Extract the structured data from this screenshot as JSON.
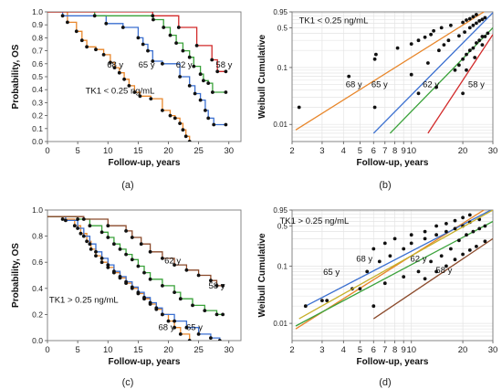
{
  "figure": {
    "panel_labels": [
      "(a)",
      "(b)",
      "(c)",
      "(d)"
    ]
  },
  "chart_data": [
    {
      "panel": "(a)",
      "type": "line",
      "step": true,
      "xlabel": "Follow-up, years",
      "ylabel": "Probability, OS",
      "xlim": [
        0,
        32
      ],
      "ylim": [
        0,
        1.0
      ],
      "xticks": [
        0,
        5,
        10,
        15,
        20,
        25,
        30
      ],
      "yticks": [
        0,
        0.1,
        0.2,
        0.3,
        0.4,
        0.5,
        0.6,
        0.7,
        0.8,
        0.9,
        1.0
      ],
      "annotations": [
        {
          "text": "TK1 < 0.25 ng/mL",
          "x": 12,
          "y": 0.37
        },
        {
          "text": "68 y",
          "x": 11.2,
          "y": 0.57
        },
        {
          "text": "65 y",
          "x": 16.4,
          "y": 0.57
        },
        {
          "text": "62 y",
          "x": 22.6,
          "y": 0.57
        },
        {
          "text": "58 y",
          "x": 29.2,
          "y": 0.57
        }
      ],
      "series": [
        {
          "color": "#e8862a",
          "x": [
            0,
            3.3,
            4.8,
            5.7,
            6.5,
            8,
            9.3,
            10.4,
            11.1,
            11.9,
            12.7,
            13.5,
            14.4,
            15.3,
            17.1,
            19,
            20.3,
            21.1,
            21.9,
            22.4,
            22.9,
            23.5
          ],
          "y": [
            1.0,
            0.92,
            0.85,
            0.78,
            0.73,
            0.71,
            0.67,
            0.61,
            0.57,
            0.53,
            0.48,
            0.43,
            0.38,
            0.35,
            0.33,
            0.24,
            0.2,
            0.18,
            0.14,
            0.09,
            0.04,
            0.0
          ]
        },
        {
          "color": "#3a6fd0",
          "x": [
            0,
            2.5,
            9.7,
            12.5,
            15,
            15.8,
            16.6,
            17.4,
            19,
            21.9,
            23.5,
            24.4,
            25.3,
            26.1,
            26.6,
            27.5,
            29.5
          ],
          "y": [
            1.0,
            0.97,
            0.91,
            0.88,
            0.8,
            0.75,
            0.7,
            0.62,
            0.6,
            0.5,
            0.43,
            0.37,
            0.32,
            0.24,
            0.18,
            0.13,
            0.13
          ]
        },
        {
          "color": "#3aa23a",
          "x": [
            0,
            7.8,
            17.5,
            19.2,
            20.3,
            21.3,
            22.4,
            23.5,
            24.2,
            25.3,
            25.8,
            26.6,
            27.3,
            29.5
          ],
          "y": [
            1.0,
            0.97,
            0.94,
            0.88,
            0.82,
            0.76,
            0.7,
            0.65,
            0.58,
            0.52,
            0.47,
            0.45,
            0.38,
            0.38
          ]
        },
        {
          "color": "#d22a2a",
          "x": [
            0,
            17.4,
            21.7,
            24.7,
            27.2,
            28.1,
            29.5
          ],
          "y": [
            1.0,
            0.97,
            0.88,
            0.74,
            0.63,
            0.54,
            0.54
          ]
        }
      ]
    },
    {
      "panel": "(b)",
      "type": "scatter",
      "xscale": "log",
      "yscale": "log",
      "xlabel": "Follow-up, years",
      "ylabel": "Weibull Cumulative",
      "xlim": [
        2,
        30
      ],
      "ylim": [
        0.005,
        0.95
      ],
      "xticks": [
        2,
        3,
        4,
        5,
        6,
        7,
        8,
        9,
        10,
        20,
        30
      ],
      "yticks": [
        0.01,
        0.1,
        0.5,
        0.95
      ],
      "annotations": [
        {
          "text": "TK1 < 0.25 ng/mL",
          "x": 3.5,
          "y": 0.6
        },
        {
          "text": "68 y",
          "x": 4.6,
          "y": 0.045
        },
        {
          "text": "65 y",
          "x": 6.5,
          "y": 0.045
        },
        {
          "text": "62 y",
          "x": 13,
          "y": 0.045
        },
        {
          "text": "58 y",
          "x": 24,
          "y": 0.045
        }
      ],
      "series": [
        {
          "color": "#e8862a",
          "fit": [
            [
              2.1,
              0.008
            ],
            [
              27,
              0.98
            ]
          ],
          "points": [
            [
              2.2,
              0.02
            ],
            [
              4.3,
              0.07
            ],
            [
              6.1,
              0.14
            ],
            [
              6.2,
              0.17
            ],
            [
              8.3,
              0.22
            ],
            [
              10,
              0.26
            ],
            [
              11,
              0.3
            ],
            [
              12,
              0.34
            ],
            [
              13,
              0.38
            ],
            [
              13.5,
              0.44
            ],
            [
              15,
              0.5
            ],
            [
              17,
              0.55
            ],
            [
              20,
              0.62
            ],
            [
              21,
              0.68
            ],
            [
              22,
              0.72
            ],
            [
              23,
              0.78
            ],
            [
              24,
              0.85
            ]
          ]
        },
        {
          "color": "#3a6fd0",
          "fit": [
            [
              6,
              0.007
            ],
            [
              30,
              0.92
            ]
          ],
          "points": [
            [
              10,
              0.075
            ],
            [
              12.5,
              0.12
            ],
            [
              14.5,
              0.2
            ],
            [
              15.5,
              0.25
            ],
            [
              16.5,
              0.3
            ],
            [
              19,
              0.36
            ],
            [
              20.5,
              0.42
            ],
            [
              22,
              0.5
            ],
            [
              23,
              0.55
            ],
            [
              24,
              0.6
            ],
            [
              25,
              0.66
            ],
            [
              26,
              0.7
            ],
            [
              27,
              0.75
            ]
          ]
        },
        {
          "color": "#3aa23a",
          "fit": [
            [
              7.5,
              0.007
            ],
            [
              30,
              0.5
            ]
          ],
          "points": [
            [
              6.1,
              0.02
            ],
            [
              11,
              0.035
            ],
            [
              14,
              0.045
            ],
            [
              18,
              0.09
            ],
            [
              19,
              0.11
            ],
            [
              20,
              0.14
            ],
            [
              21,
              0.17
            ],
            [
              22,
              0.2
            ],
            [
              23,
              0.22
            ],
            [
              24,
              0.27
            ],
            [
              25,
              0.3
            ],
            [
              26,
              0.35
            ]
          ]
        },
        {
          "color": "#d22a2a",
          "fit": [
            [
              12.5,
              0.007
            ],
            [
              30,
              0.38
            ]
          ],
          "points": [
            [
              20,
              0.035
            ],
            [
              21,
              0.09
            ],
            [
              23.5,
              0.15
            ],
            [
              26,
              0.25
            ],
            [
              27,
              0.35
            ],
            [
              28,
              0.4
            ]
          ]
        }
      ]
    },
    {
      "panel": "(c)",
      "type": "line",
      "step": true,
      "xlabel": "Follow-up, years",
      "ylabel": "Probability, OS",
      "xlim": [
        0,
        32
      ],
      "ylim": [
        0,
        1.0
      ],
      "xticks": [
        0,
        5,
        10,
        15,
        20,
        25,
        30
      ],
      "yticks": [
        0,
        0.2,
        0.4,
        0.6,
        0.8,
        1.0
      ],
      "annotations": [
        {
          "text": "TK1 > 0.25 ng/mL",
          "x": 6,
          "y": 0.29
        },
        {
          "text": "62 y",
          "x": 20.7,
          "y": 0.59
        },
        {
          "text": "58 y",
          "x": 28,
          "y": 0.4
        },
        {
          "text": "68 y",
          "x": 19.7,
          "y": 0.08
        },
        {
          "text": "65 y",
          "x": 24.3,
          "y": 0.08
        }
      ],
      "series": [
        {
          "color": "#e8862a",
          "x": [
            0,
            2.5,
            4.5,
            5.5,
            6.5,
            7.2,
            8,
            9,
            10,
            11,
            12,
            13,
            14,
            15,
            16,
            17,
            18,
            19,
            20,
            21,
            22,
            23.5
          ],
          "y": [
            0.95,
            0.93,
            0.88,
            0.82,
            0.76,
            0.7,
            0.65,
            0.6,
            0.56,
            0.52,
            0.48,
            0.44,
            0.4,
            0.36,
            0.32,
            0.28,
            0.24,
            0.2,
            0.15,
            0.1,
            0.05,
            0.0
          ]
        },
        {
          "color": "#3a6fd0",
          "x": [
            0,
            3,
            5,
            6,
            7,
            8,
            9,
            10,
            11,
            12,
            13,
            14,
            15,
            16,
            17,
            18,
            19,
            21,
            23,
            25,
            27,
            28.5
          ],
          "y": [
            0.95,
            0.92,
            0.86,
            0.8,
            0.74,
            0.68,
            0.63,
            0.58,
            0.53,
            0.49,
            0.45,
            0.41,
            0.37,
            0.33,
            0.29,
            0.25,
            0.2,
            0.15,
            0.1,
            0.05,
            0.02,
            0.0
          ]
        },
        {
          "color": "#3aa23a",
          "x": [
            0,
            5,
            7,
            9,
            10,
            11,
            12,
            13,
            14,
            15,
            16,
            17,
            19,
            21,
            22,
            24,
            26,
            28,
            29
          ],
          "y": [
            0.95,
            0.93,
            0.88,
            0.83,
            0.79,
            0.74,
            0.7,
            0.66,
            0.62,
            0.57,
            0.52,
            0.47,
            0.42,
            0.37,
            0.32,
            0.27,
            0.23,
            0.2,
            0.2
          ]
        },
        {
          "color": "#8b4a2b",
          "x": [
            0,
            6,
            10,
            13,
            14,
            15.5,
            17,
            19,
            21,
            23,
            25,
            27,
            28,
            29
          ],
          "y": [
            0.95,
            0.93,
            0.88,
            0.84,
            0.79,
            0.74,
            0.68,
            0.63,
            0.58,
            0.54,
            0.5,
            0.46,
            0.42,
            0.42
          ]
        }
      ]
    },
    {
      "panel": "(d)",
      "type": "scatter",
      "xscale": "log",
      "yscale": "log",
      "xlabel": "Follow-up, years",
      "ylabel": "Weibull Cumulative",
      "xlim": [
        2,
        30
      ],
      "ylim": [
        0.005,
        0.95
      ],
      "xticks": [
        2,
        3,
        4,
        5,
        6,
        7,
        8,
        9,
        10,
        20,
        30
      ],
      "yticks": [
        0.01,
        0.1,
        0.5,
        0.95
      ],
      "annotations": [
        {
          "text": "TK1 > 0.25 ng/mL",
          "x": 2.7,
          "y": 0.55
        },
        {
          "text": "68 y",
          "x": 5.3,
          "y": 0.12
        },
        {
          "text": "65 y",
          "x": 3.4,
          "y": 0.07
        },
        {
          "text": "62 y",
          "x": 11,
          "y": 0.12
        },
        {
          "text": "58 y",
          "x": 15.5,
          "y": 0.075
        }
      ],
      "series": [
        {
          "color": "#e8862a",
          "fit": [
            [
              2.1,
              0.008
            ],
            [
              27,
              0.98
            ]
          ],
          "points": [
            [
              6,
              0.2
            ],
            [
              7,
              0.25
            ],
            [
              8,
              0.3
            ],
            [
              10,
              0.35
            ],
            [
              12,
              0.4
            ],
            [
              14,
              0.5
            ],
            [
              16,
              0.55
            ],
            [
              18,
              0.62
            ],
            [
              20,
              0.7
            ],
            [
              22,
              0.78
            ]
          ]
        },
        {
          "color": "#3a6fd0",
          "fit": [
            [
              2.4,
              0.02
            ],
            [
              30,
              0.99
            ]
          ],
          "points": [
            [
              2.4,
              0.02
            ],
            [
              3.2,
              0.025
            ],
            [
              4.5,
              0.04
            ],
            [
              5.5,
              0.08
            ],
            [
              6.5,
              0.12
            ],
            [
              7.5,
              0.15
            ],
            [
              9,
              0.2
            ],
            [
              10,
              0.25
            ],
            [
              12,
              0.3
            ],
            [
              14,
              0.35
            ],
            [
              16,
              0.4
            ],
            [
              18,
              0.45
            ],
            [
              20,
              0.5
            ],
            [
              22,
              0.58
            ],
            [
              25,
              0.65
            ]
          ]
        },
        {
          "color": "#3aa23a",
          "fit": [
            [
              2.1,
              0.009
            ],
            [
              30,
              0.6
            ]
          ],
          "points": [
            [
              3,
              0.025
            ],
            [
              5,
              0.04
            ],
            [
              7,
              0.05
            ],
            [
              9,
              0.065
            ],
            [
              11,
              0.08
            ],
            [
              13,
              0.12
            ],
            [
              15,
              0.15
            ],
            [
              17,
              0.2
            ],
            [
              19,
              0.28
            ],
            [
              21,
              0.35
            ],
            [
              23,
              0.4
            ],
            [
              25,
              0.45
            ],
            [
              27,
              0.5
            ]
          ]
        },
        {
          "color": "#c7b02a",
          "fit": [
            [
              2.2,
              0.012
            ],
            [
              30,
              0.95
            ]
          ],
          "points": []
        },
        {
          "color": "#8b4a2b",
          "fit": [
            [
              6,
              0.012
            ],
            [
              30,
              0.3
            ]
          ],
          "points": [
            [
              6,
              0.02
            ],
            [
              12,
              0.06
            ],
            [
              14,
              0.08
            ],
            [
              16,
              0.1
            ],
            [
              18,
              0.13
            ],
            [
              20,
              0.16
            ],
            [
              22,
              0.19
            ],
            [
              24,
              0.22
            ],
            [
              27,
              0.27
            ]
          ]
        }
      ]
    }
  ]
}
